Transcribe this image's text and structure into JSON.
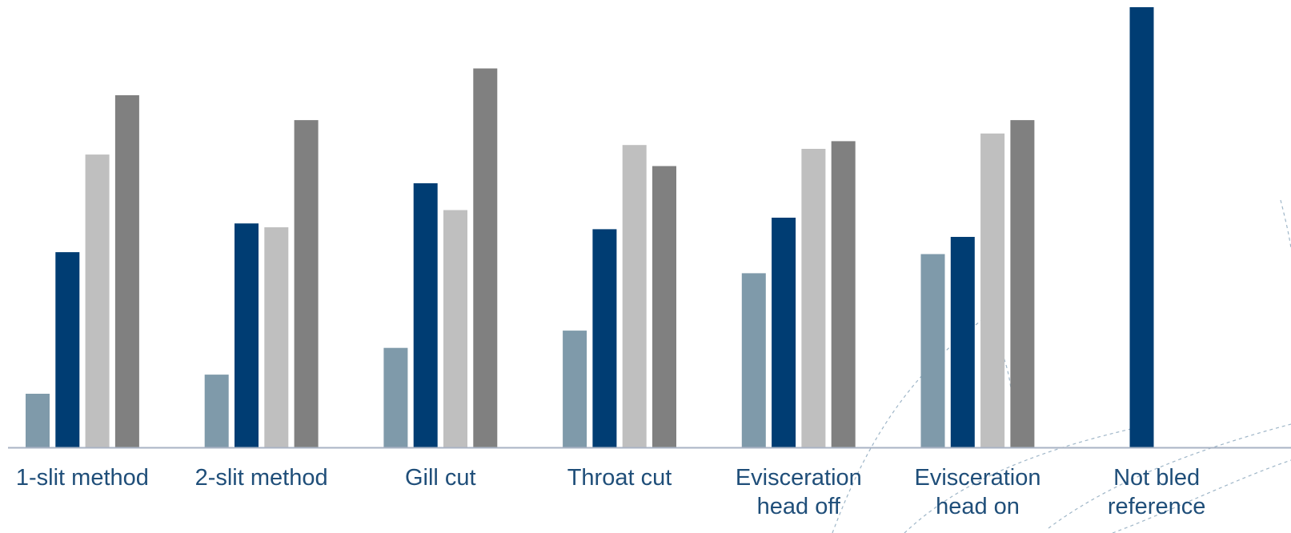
{
  "chart_data": {
    "type": "bar",
    "categories": [
      [
        "1-slit method"
      ],
      [
        "2-slit method"
      ],
      [
        "Gill cut"
      ],
      [
        "Throat cut"
      ],
      [
        "Evisceration",
        "head off"
      ],
      [
        "Evisceration",
        "head on"
      ],
      [
        "Not bled",
        "reference"
      ]
    ],
    "series": [
      {
        "color": "#7f9aaa",
        "values": [
          14,
          19,
          26,
          30.5,
          45.5,
          50.5,
          0
        ]
      },
      {
        "color": "#003d73",
        "values": [
          51,
          58.5,
          69,
          57,
          60,
          55,
          115
        ]
      },
      {
        "color": "#bfbfbf",
        "values": [
          76.5,
          57.5,
          62,
          79,
          78,
          82,
          0
        ]
      },
      {
        "color": "#808080",
        "values": [
          92,
          85.5,
          99,
          73.5,
          80,
          85.5,
          0
        ]
      }
    ],
    "ylim": [
      0,
      115
    ],
    "grid": false,
    "legend": "none",
    "axis_color": "#a9b3c4"
  }
}
